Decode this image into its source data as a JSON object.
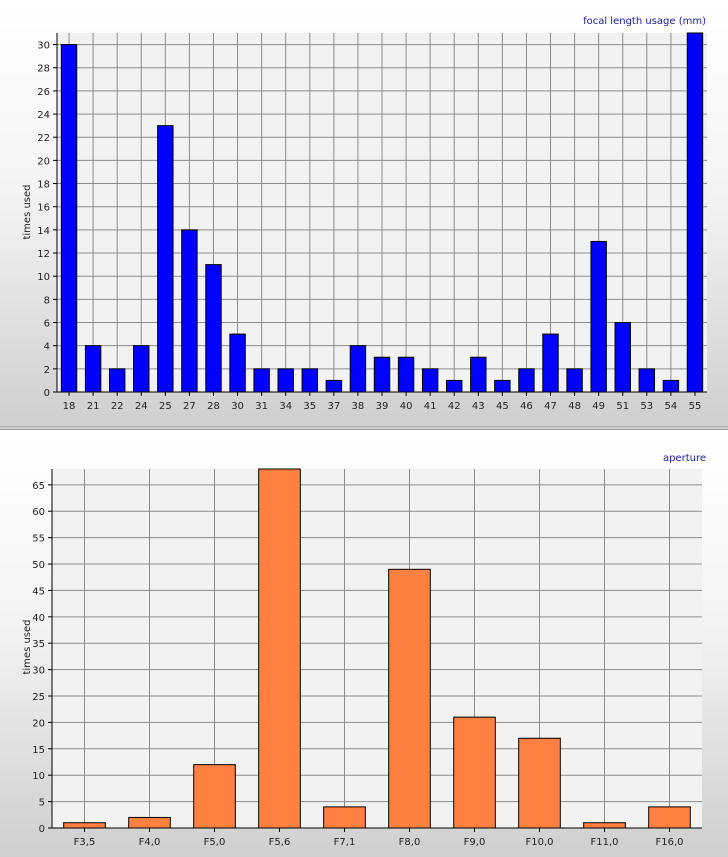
{
  "chart_data": [
    {
      "type": "bar",
      "title": "focal length usage (mm)",
      "xlabel": "",
      "ylabel": "times used",
      "ylim": [
        0,
        31
      ],
      "y_ticks": [
        0,
        2,
        4,
        6,
        8,
        10,
        12,
        14,
        16,
        18,
        20,
        22,
        24,
        26,
        28,
        30
      ],
      "grid": true,
      "bar_color": "#0000ff",
      "categories": [
        "18",
        "21",
        "22",
        "24",
        "25",
        "27",
        "28",
        "30",
        "31",
        "34",
        "35",
        "37",
        "38",
        "39",
        "40",
        "41",
        "42",
        "43",
        "45",
        "46",
        "47",
        "48",
        "49",
        "51",
        "53",
        "54",
        "55"
      ],
      "values": [
        30,
        4,
        2,
        4,
        23,
        14,
        11,
        5,
        2,
        2,
        2,
        1,
        4,
        3,
        3,
        2,
        1,
        3,
        1,
        2,
        5,
        2,
        13,
        6,
        2,
        1,
        31
      ]
    },
    {
      "type": "bar",
      "title": "aperture",
      "xlabel": "",
      "ylabel": "times used",
      "ylim": [
        0,
        68
      ],
      "y_ticks": [
        0,
        5,
        10,
        15,
        20,
        25,
        30,
        35,
        40,
        45,
        50,
        55,
        60,
        65
      ],
      "grid": true,
      "bar_color": "#ff8040",
      "categories": [
        "F3,5",
        "F4,0",
        "F5,0",
        "F5,6",
        "F7,1",
        "F8,0",
        "F9,0",
        "F10,0",
        "F11,0",
        "F16,0"
      ],
      "values": [
        1,
        2,
        12,
        68,
        4,
        49,
        21,
        17,
        1,
        4
      ]
    }
  ]
}
